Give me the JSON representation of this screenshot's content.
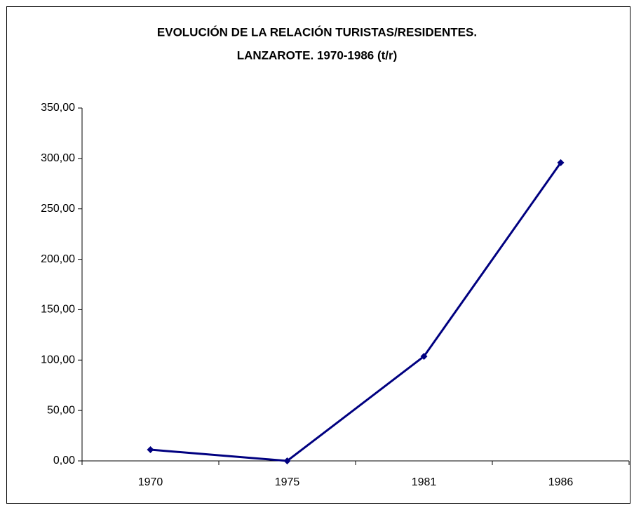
{
  "chart_data": {
    "type": "line",
    "title": [
      "EVOLUCIÓN DE LA RELACIÓN TURISTAS/RESIDENTES.",
      "LANZAROTE. 1970-1986 (t/r)"
    ],
    "categories": [
      "1970",
      "1975",
      "1981",
      "1986"
    ],
    "series": [
      {
        "name": "t/r",
        "color": "#000080",
        "values": [
          11.1,
          0,
          103.7,
          295.8
        ]
      }
    ],
    "ylim": [
      0,
      350
    ],
    "yticks": [
      {
        "value": 0,
        "label": "0,00"
      },
      {
        "value": 50,
        "label": "50,00"
      },
      {
        "value": 100,
        "label": "100,00"
      },
      {
        "value": 150,
        "label": "150,00"
      },
      {
        "value": 200,
        "label": "200,00"
      },
      {
        "value": 250,
        "label": "250,00"
      },
      {
        "value": 300,
        "label": "300,00"
      },
      {
        "value": 350,
        "label": "350,00"
      }
    ],
    "grid": false
  }
}
